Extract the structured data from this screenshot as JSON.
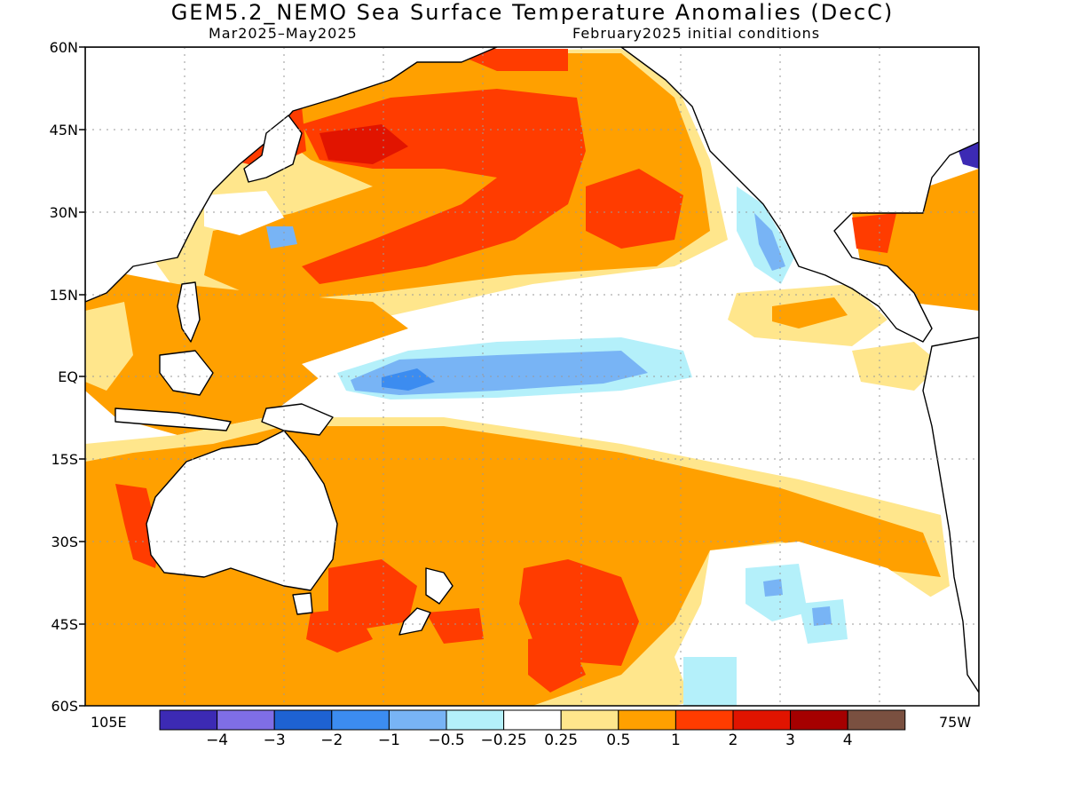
{
  "title": "GEM5.2_NEMO Sea Surface Temperature Anomalies (DecC)",
  "subtitle_left": "Mar2025–May2025",
  "subtitle_right": "February2025 initial conditions",
  "lat_labels": [
    "60N",
    "45N",
    "30N",
    "15N",
    "EQ",
    "15S",
    "30S",
    "45S",
    "60S"
  ],
  "lon_labels": {
    "left": "105E",
    "right": "75W"
  },
  "colorbar": {
    "colors": [
      "#3c2ab4",
      "#7f6ee6",
      "#1e62d2",
      "#3c8cf0",
      "#78b4f5",
      "#b4f0fa",
      "#ffffff",
      "#ffe68c",
      "#ffa000",
      "#ff3c00",
      "#e11400",
      "#a50000",
      "#7a5040"
    ],
    "labels": [
      "−4",
      "−3",
      "−2",
      "−1",
      "−0.5",
      "−0.25",
      "0.25",
      "0.5",
      "1",
      "2",
      "3",
      "4"
    ]
  }
}
